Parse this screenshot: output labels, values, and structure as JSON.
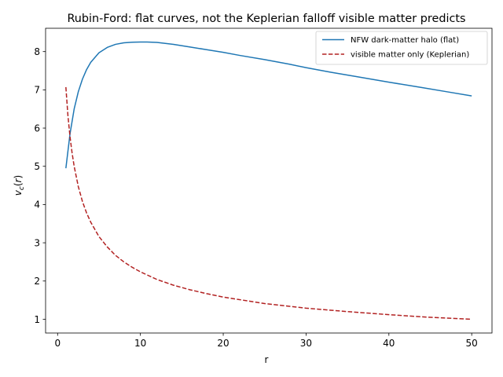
{
  "chart_data": {
    "type": "line",
    "title": "Rubin-Ford: flat curves, not the Keplerian falloff visible matter predicts",
    "xlabel": "r",
    "ylabel": "v_c(r)",
    "xlim": [
      -1.45,
      52.45
    ],
    "ylim": [
      0.64,
      8.61
    ],
    "xticks": [
      0,
      10,
      20,
      30,
      40,
      50
    ],
    "xtick_labels": [
      "0",
      "10",
      "20",
      "30",
      "40",
      "50"
    ],
    "yticks": [
      1,
      2,
      3,
      4,
      5,
      6,
      7,
      8
    ],
    "ytick_labels": [
      "1",
      "2",
      "3",
      "4",
      "5",
      "6",
      "7",
      "8"
    ],
    "grid": false,
    "legend_position": "top-right",
    "series": [
      {
        "name": "NFW dark-matter halo (flat)",
        "color": "#1f77b4",
        "style": "solid",
        "x": [
          1,
          1.5,
          2,
          2.5,
          3,
          3.5,
          4,
          5,
          6,
          7,
          8,
          9,
          10,
          10.8,
          12,
          14,
          16,
          18,
          20,
          22,
          25,
          28,
          30,
          33,
          36,
          40,
          44,
          47,
          50
        ],
        "y": [
          4.95,
          5.85,
          6.5,
          6.95,
          7.28,
          7.53,
          7.72,
          7.97,
          8.11,
          8.19,
          8.23,
          8.245,
          8.25,
          8.25,
          8.24,
          8.19,
          8.12,
          8.05,
          7.98,
          7.9,
          7.79,
          7.67,
          7.58,
          7.46,
          7.35,
          7.2,
          7.06,
          6.95,
          6.84
        ]
      },
      {
        "name": "visible matter only (Keplerian)",
        "color": "#b22222",
        "style": "dashed",
        "x": [
          1,
          1.25,
          1.5,
          1.75,
          2,
          2.5,
          3,
          3.5,
          4,
          5,
          6,
          7,
          8,
          9,
          10,
          12,
          14,
          16,
          18,
          20,
          25,
          30,
          35,
          40,
          45,
          50
        ],
        "y": [
          7.07,
          6.32,
          5.77,
          5.35,
          5.0,
          4.47,
          4.08,
          3.78,
          3.54,
          3.16,
          2.89,
          2.67,
          2.5,
          2.36,
          2.24,
          2.04,
          1.89,
          1.77,
          1.67,
          1.58,
          1.41,
          1.29,
          1.2,
          1.12,
          1.05,
          1.0
        ]
      }
    ]
  }
}
